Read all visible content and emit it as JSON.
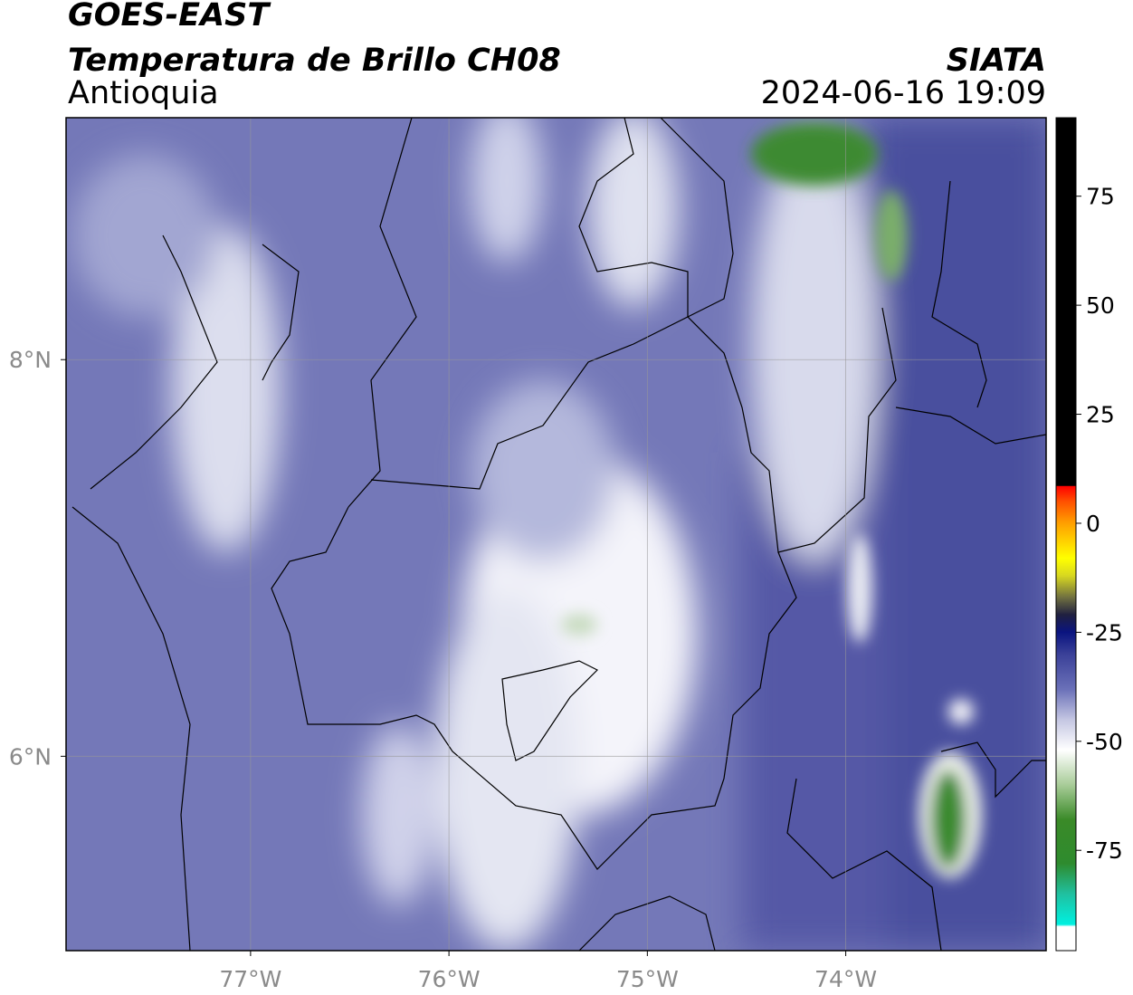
{
  "header": {
    "title": "GOES-EAST",
    "subtitle": "Temperatura de Brillo CH08",
    "region": "Antioquia",
    "source": "SIATA",
    "datetime": "2024-06-16 19:09"
  },
  "chart_data": {
    "type": "map",
    "xlim": [
      -77.93,
      -72.99
    ],
    "ylim": [
      5.02,
      9.22
    ],
    "xticks": [
      {
        "value": -77,
        "label": "77°W"
      },
      {
        "value": -76,
        "label": "76°W"
      },
      {
        "value": -75,
        "label": "75°W"
      },
      {
        "value": -74,
        "label": "74°W"
      }
    ],
    "yticks": [
      {
        "value": 6,
        "label": "6°N"
      },
      {
        "value": 8,
        "label": "8°N"
      }
    ],
    "grid": true,
    "colorbar": {
      "lim": [
        -98,
        93
      ],
      "ticks": [
        75,
        50,
        25,
        0,
        -25,
        -50,
        -75
      ],
      "stops": [
        {
          "value": -98,
          "color": "#ffffff"
        },
        {
          "value": -92.5,
          "color": "#ffffff"
        },
        {
          "value": -92,
          "color": "#00f0e0"
        },
        {
          "value": -85,
          "color": "#20c0a0"
        },
        {
          "value": -78,
          "color": "#2e8b2e"
        },
        {
          "value": -68,
          "color": "#3a8a28"
        },
        {
          "value": -60,
          "color": "#a8cc98"
        },
        {
          "value": -52,
          "color": "#ffffff"
        },
        {
          "value": -45,
          "color": "#c4c6e2"
        },
        {
          "value": -38,
          "color": "#6a70b8"
        },
        {
          "value": -30,
          "color": "#3a4098"
        },
        {
          "value": -25,
          "color": "#0a1480"
        },
        {
          "value": -21,
          "color": "#202040"
        },
        {
          "value": -17,
          "color": "#707040"
        },
        {
          "value": -12,
          "color": "#d8d820"
        },
        {
          "value": -8,
          "color": "#ffff00"
        },
        {
          "value": 0,
          "color": "#ffa000"
        },
        {
          "value": 5,
          "color": "#ff5000"
        },
        {
          "value": 8.5,
          "color": "#ff0000"
        },
        {
          "value": 8.6,
          "color": "#000000"
        },
        {
          "value": 93,
          "color": "#000000"
        }
      ]
    }
  }
}
